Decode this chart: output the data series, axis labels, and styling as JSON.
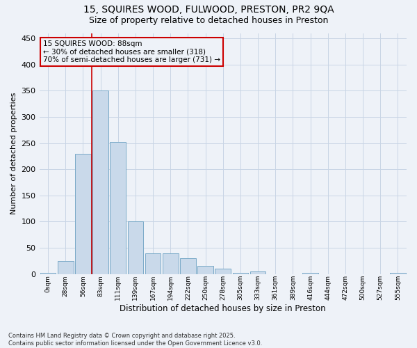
{
  "title_line1": "15, SQUIRES WOOD, FULWOOD, PRESTON, PR2 9QA",
  "title_line2": "Size of property relative to detached houses in Preston",
  "xlabel": "Distribution of detached houses by size in Preston",
  "ylabel": "Number of detached properties",
  "bar_color": "#c9d9ea",
  "bar_edge_color": "#7aaac8",
  "grid_color": "#c8d5e5",
  "background_color": "#eef2f8",
  "annotation_text": "15 SQUIRES WOOD: 88sqm\n← 30% of detached houses are smaller (318)\n70% of semi-detached houses are larger (731) →",
  "vline_color": "#cc0000",
  "vline_index": 2.5,
  "categories": [
    "0sqm",
    "28sqm",
    "56sqm",
    "83sqm",
    "111sqm",
    "139sqm",
    "167sqm",
    "194sqm",
    "222sqm",
    "250sqm",
    "278sqm",
    "305sqm",
    "333sqm",
    "361sqm",
    "389sqm",
    "416sqm",
    "444sqm",
    "472sqm",
    "500sqm",
    "527sqm",
    "555sqm"
  ],
  "values": [
    2,
    25,
    230,
    350,
    252,
    100,
    40,
    40,
    30,
    15,
    10,
    2,
    5,
    0,
    0,
    2,
    0,
    0,
    0,
    0,
    2
  ],
  "ylim": [
    0,
    460
  ],
  "yticks": [
    0,
    50,
    100,
    150,
    200,
    250,
    300,
    350,
    400,
    450
  ],
  "footnote": "Contains HM Land Registry data © Crown copyright and database right 2025.\nContains public sector information licensed under the Open Government Licence v3.0.",
  "figsize": [
    6.0,
    5.0
  ],
  "dpi": 100
}
